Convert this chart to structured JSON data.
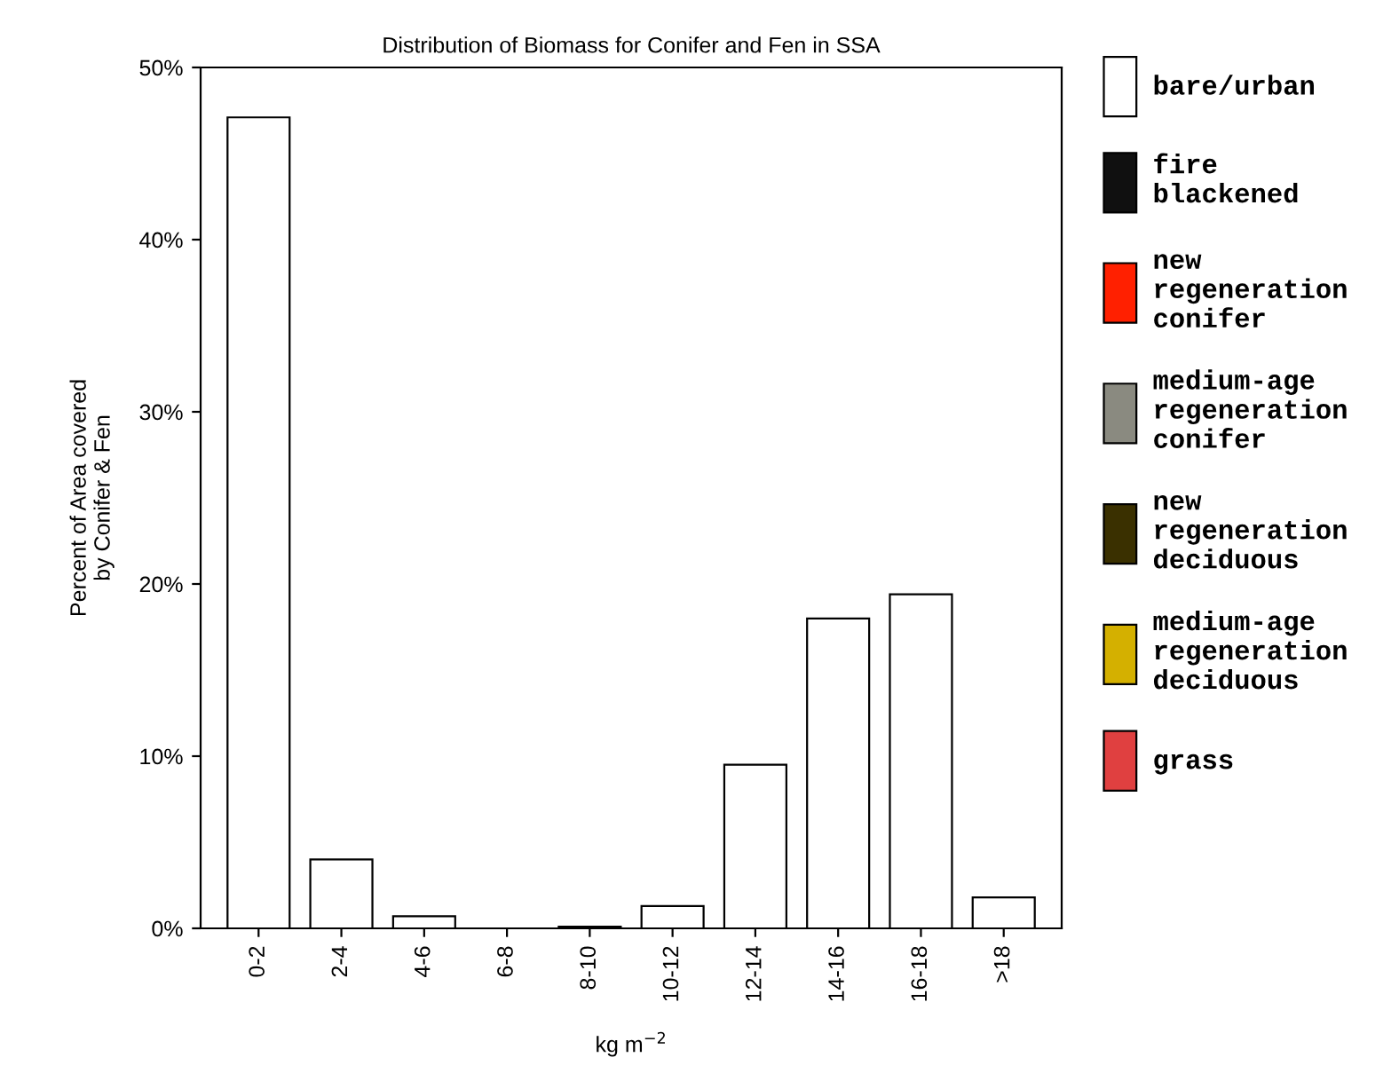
{
  "chart_data": {
    "type": "bar",
    "title": "Distribution of Biomass for Conifer and Fen in SSA",
    "xlabel": "kg m$^{−2}$",
    "ylabel": "Percent of Area covered\nby Conifer & Fen",
    "categories": [
      "0-2",
      "2-4",
      "4-6",
      "6-8",
      "8-10",
      "10-12",
      "12-14",
      "14-16",
      "16-18",
      ">18"
    ],
    "series": [
      {
        "name": "bare/urban",
        "color": "#ffffff",
        "values": [
          47.1,
          4.0,
          0.7,
          0,
          0.1,
          1.3,
          9.5,
          18.0,
          19.4,
          1.8
        ]
      },
      {
        "name": "fire\nblackened",
        "color": "#101010",
        "values": [
          null,
          null,
          null,
          null,
          null,
          null,
          null,
          null,
          null,
          null
        ]
      },
      {
        "name": "new\nregeneration\nconifer",
        "color": "#ff2000",
        "values": [
          null,
          null,
          null,
          null,
          null,
          null,
          null,
          null,
          null,
          null
        ]
      },
      {
        "name": "medium-age\nregeneration\nconifer",
        "color": "#8a8a80",
        "values": [
          null,
          null,
          null,
          null,
          null,
          null,
          null,
          null,
          null,
          null
        ]
      },
      {
        "name": "new\nregeneration\ndeciduous",
        "color": "#3a3000",
        "values": [
          null,
          null,
          null,
          null,
          null,
          null,
          null,
          null,
          null,
          null
        ]
      },
      {
        "name": "medium-age\nregeneration\ndeciduous",
        "color": "#d4b000",
        "values": [
          null,
          null,
          null,
          null,
          null,
          null,
          null,
          null,
          null,
          null
        ]
      },
      {
        "name": "grass",
        "color": "#e04040",
        "values": [
          null,
          null,
          null,
          null,
          null,
          null,
          null,
          null,
          null,
          null
        ]
      }
    ],
    "ylim": [
      0,
      50
    ],
    "yticks": [
      {
        "value": 0,
        "label": "0%"
      },
      {
        "value": 10,
        "label": "10%"
      },
      {
        "value": 20,
        "label": "20%"
      },
      {
        "value": 30,
        "label": "30%"
      },
      {
        "value": 40,
        "label": "40%"
      },
      {
        "value": 50,
        "label": "50%"
      }
    ],
    "grid": false,
    "legend": "right"
  }
}
